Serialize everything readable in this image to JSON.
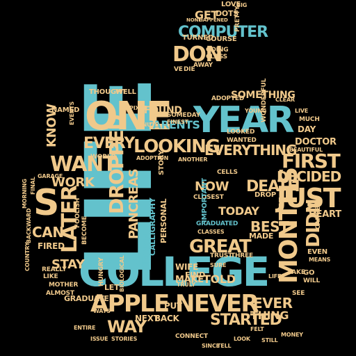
{
  "colors": {
    "background": "#000000",
    "tan": "#f0c98b",
    "teal": "#63c2cc"
  },
  "cloud": {
    "shape": "apple",
    "words": {
      "life": "LIFE",
      "college": "COLLEGE",
      "year": "YEAR",
      "one": "ONE",
      "want": "WANT",
      "s": "S",
      "apple": "APPLE",
      "never": "NEVER",
      "just": "JUST",
      "first": "FIRST",
      "months": "MONTHS",
      "don": "DON",
      "computer": "COMPUTER",
      "looking": "LOOKING",
      "dropped": "DROPPED",
      "later": "LATER",
      "great": "GREAT",
      "death": "DEATH",
      "decided": "DECIDED",
      "everything": "EVERYTHING",
      "every": "EVERY",
      "found": "FOUND",
      "parents": "PARENTS",
      "something": "SOMETHING",
      "got": "GOT",
      "get": "GET",
      "way": "WAY",
      "ever": "EVER",
      "started": "STARTED",
      "pancreas": "PANCREAS",
      "can": "CAN",
      "work": "WORK",
      "stay": "STAY",
      "didn": "DIDN",
      "know": "KNOW",
      "best": "BEST",
      "now": "NOW",
      "today": "TODAY",
      "heart": "HEART",
      "thing": "THING",
      "doctor": "DOCTOR",
      "told": "TOLD",
      "make": "MAKE",
      "let": "LET",
      "love": "LOVE",
      "fired": "FIRED",
      "wife": "WIFE",
      "find": "FIND",
      "put": "PUT",
      "next": "NEXT",
      "back": "BACK",
      "graduate": "GRADUATE",
      "company": "COMPANY",
      "thought": "THOUGHT",
      "well": "WELL",
      "named": "NAMED",
      "dots": "DOTS",
      "turned": "TURNED",
      "course": "COURSE",
      "going": "GOING",
      "class": "CLASS",
      "day": "DAY",
      "much": "MUCH",
      "live": "LIVE",
      "cells": "CELLS",
      "drop": "DROP",
      "made": "MADE",
      "wanted": "WANTED",
      "looked": "LOOKED",
      "adopted": "ADOPTED",
      "someday": "SOMEDAY",
      "calligraphy": "CALLIGRAPHY",
      "personal": "PERSONAL",
      "closest": "CLOSEST",
      "important": "IMPORTANT",
      "even": "EVEN",
      "means": "MEANS",
      "take": "TAKE",
      "go": "GO",
      "will": "WILL",
      "see": "SEE",
      "entire": "ENTIRE",
      "stories": "STORIES",
      "connect": "CONNECT",
      "since": "SINCE",
      "tell": "TELL",
      "felt": "FELT",
      "issue": "ISSUE",
      "mother": "MOTHER",
      "almost": "ALMOST",
      "really": "REALLY",
      "like": "LIKE",
      "hungry": "HUNGRY",
      "become": "BECOME",
      "foolish": "FOOLISH",
      "trust": "TRUST",
      "three": "THREE",
      "graduated": "GRADUATED",
      "classes": "CLASSES",
      "sure": "SURE",
      "truly": "TRULY",
      "pretty": "PRETTY",
      "big": "BIG",
      "away": "AWAY",
      "ve": "VE",
      "die": "DIE",
      "none": "NONE",
      "happened": "HAPPENED",
      "clear": "CLEAR",
      "story": "STORY",
      "another": "ANOTHER",
      "country": "COUNTRY",
      "final": "FINAL",
      "morning": "MORNING",
      "backward": "BACKWARD",
      "garage": "GARAGE",
      "wonderful": "WONDERFUL",
      "beautiful": "BEAUTIFUL",
      "finest": "FINEST",
      "pixar": "PIXAR",
      "cancer": "CANCER",
      "events": "EVENTS",
      "life_small": "LIFE",
      "young": "YOUNG",
      "minute": "MINUTE",
      "world": "WORLD",
      "adoption": "ADOPTION",
      "biological": "BIOLOGICAL",
      "ways": "WAYS",
      "look": "LOOK",
      "still": "STILL",
      "money": "MONEY"
    }
  }
}
